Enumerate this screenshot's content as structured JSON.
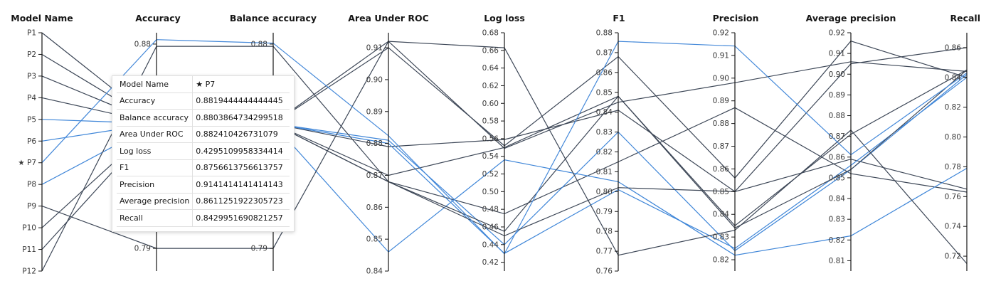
{
  "chart_data": {
    "type": "parallel-coordinates",
    "colors": {
      "highlight": "#4589d9",
      "dark": "#3d4757",
      "light": "#3f86d8"
    },
    "dimensions": [
      {
        "name": "Model Name",
        "categorical": true,
        "categories": [
          "P1",
          "P2",
          "P3",
          "P4",
          "P5",
          "P6",
          "P7",
          "P8",
          "P9",
          "P10",
          "P11",
          "P12"
        ],
        "tick_labels": [
          "P1",
          "P2",
          "P3",
          "P4",
          "P5",
          "P6",
          "★ P7",
          "P8",
          "P9",
          "P10",
          "P11",
          "P12"
        ]
      },
      {
        "name": "Accuracy",
        "range": [
          0.78,
          0.885
        ],
        "ticks": [
          0.79,
          0.8,
          0.88
        ],
        "tick_labels": [
          "0.79",
          "0.80",
          "0.88"
        ]
      },
      {
        "name": "Balance accuracy",
        "range": [
          0.78,
          0.885
        ],
        "ticks": [
          0.79,
          0.88
        ],
        "tick_labels": [
          "0.79",
          "0.88"
        ]
      },
      {
        "name": "Area Under ROC",
        "range": [
          0.84,
          0.9147
        ],
        "ticks": [
          0.84,
          0.85,
          0.86,
          0.87,
          0.88,
          0.89,
          0.9,
          0.91
        ],
        "tick_labels": [
          "0.84",
          "0.85",
          "0.86",
          "0.87",
          "0.88",
          "0.89",
          "0.90",
          "0.91"
        ]
      },
      {
        "name": "Log loss",
        "range": [
          0.41,
          0.68
        ],
        "ticks": [
          0.42,
          0.44,
          0.46,
          0.48,
          0.5,
          0.52,
          0.54,
          0.56,
          0.58,
          0.6,
          0.62,
          0.64,
          0.66,
          0.68
        ],
        "tick_labels": [
          "0.42",
          "0.44",
          "0.46",
          "0.48",
          "0.50",
          "0.52",
          "0.54",
          "0.56",
          "0.58",
          "0.60",
          "0.62",
          "0.64",
          "0.66",
          "0.68"
        ]
      },
      {
        "name": "F1",
        "range": [
          0.76,
          0.88
        ],
        "ticks": [
          0.76,
          0.77,
          0.78,
          0.79,
          0.8,
          0.81,
          0.82,
          0.83,
          0.84,
          0.85,
          0.86,
          0.87,
          0.88
        ],
        "tick_labels": [
          "0.76",
          "0.77",
          "0.78",
          "0.79",
          "0.80",
          "0.81",
          "0.82",
          "0.83",
          "0.84",
          "0.85",
          "0.86",
          "0.87",
          "0.88"
        ]
      },
      {
        "name": "Precision",
        "range": [
          0.815,
          0.92
        ],
        "ticks": [
          0.82,
          0.83,
          0.84,
          0.85,
          0.86,
          0.87,
          0.88,
          0.89,
          0.9,
          0.91,
          0.92
        ],
        "tick_labels": [
          "0.82",
          "0.83",
          "0.84",
          "0.85",
          "0.86",
          "0.87",
          "0.88",
          "0.89",
          "0.90",
          "0.91",
          "0.92"
        ]
      },
      {
        "name": "Average precision",
        "range": [
          0.805,
          0.92
        ],
        "ticks": [
          0.81,
          0.82,
          0.83,
          0.84,
          0.85,
          0.86,
          0.87,
          0.88,
          0.89,
          0.9,
          0.91,
          0.92
        ],
        "tick_labels": [
          "0.81",
          "0.82",
          "0.83",
          "0.84",
          "0.85",
          "0.86",
          "0.87",
          "0.88",
          "0.89",
          "0.90",
          "0.91",
          "0.92"
        ]
      },
      {
        "name": "Recall",
        "range": [
          0.71,
          0.87
        ],
        "ticks": [
          0.72,
          0.74,
          0.76,
          0.78,
          0.8,
          0.82,
          0.84,
          0.86
        ],
        "tick_labels": [
          "0.72",
          "0.74",
          "0.76",
          "0.78",
          "0.80",
          "0.82",
          "0.84",
          "0.86"
        ]
      }
    ],
    "series": [
      {
        "name": "P1",
        "color": "dark",
        "values": [
          "P1",
          0.845,
          0.845,
          0.912,
          0.549,
          0.845,
          0.898,
          0.906,
          0.844
        ]
      },
      {
        "name": "P2",
        "color": "dark",
        "values": [
          "P2",
          0.845,
          0.845,
          0.91,
          0.552,
          0.868,
          0.856,
          0.916,
          0.84
        ]
      },
      {
        "name": "P3",
        "color": "dark",
        "values": [
          "P3",
          0.845,
          0.845,
          0.879,
          0.559,
          0.841,
          0.85,
          0.859,
          0.765
        ]
      },
      {
        "name": "P4",
        "color": "dark",
        "values": [
          "P4",
          0.845,
          0.845,
          0.868,
          0.475,
          0.815,
          0.887,
          0.852,
          0.763
        ]
      },
      {
        "name": "P5",
        "color": "light",
        "values": [
          "P5",
          0.845,
          0.845,
          0.846,
          0.536,
          0.805,
          0.822,
          0.822,
          0.779
        ]
      },
      {
        "name": "P6",
        "color": "light",
        "values": [
          "P6",
          0.845,
          0.845,
          0.881,
          0.44,
          0.83,
          0.824,
          0.854,
          0.842
        ]
      },
      {
        "name": "P7",
        "color": "highlight",
        "selected": true,
        "values": [
          "P7",
          0.8819444444444445,
          0.8803864734299518,
          0.882410426731079,
          0.4295109958334414,
          0.8756613756613757,
          0.9141414141414143,
          0.8611251922305723,
          0.8429951690821257
        ]
      },
      {
        "name": "P8",
        "color": "light",
        "values": [
          "P8",
          0.845,
          0.845,
          0.88,
          0.43,
          0.801,
          0.825,
          0.856,
          0.84
        ]
      },
      {
        "name": "P9",
        "color": "dark",
        "values": [
          "P9",
          0.79,
          0.79,
          0.912,
          0.663,
          0.768,
          0.833,
          0.873,
          0.715
        ]
      },
      {
        "name": "P10",
        "color": "dark",
        "values": [
          "P10",
          0.845,
          0.845,
          0.87,
          0.55,
          0.848,
          0.834,
          0.854,
          0.845
        ]
      },
      {
        "name": "P11",
        "color": "dark",
        "values": [
          "P11",
          0.845,
          0.845,
          0.868,
          0.455,
          0.848,
          0.835,
          0.871,
          0.845
        ]
      },
      {
        "name": "P12",
        "color": "dark",
        "values": [
          "P12",
          0.879,
          0.879,
          0.868,
          0.45,
          0.802,
          0.85,
          0.905,
          0.86
        ]
      }
    ]
  },
  "tooltip": {
    "rows": [
      {
        "key": "Model Name",
        "value": "★ P7"
      },
      {
        "key": "Accuracy",
        "value": "0.8819444444444445"
      },
      {
        "key": "Balance accuracy",
        "value": "0.8803864734299518"
      },
      {
        "key": "Area Under ROC",
        "value": "0.882410426731079"
      },
      {
        "key": "Log loss",
        "value": "0.4295109958334414"
      },
      {
        "key": "F1",
        "value": "0.8756613756613757"
      },
      {
        "key": "Precision",
        "value": "0.9141414141414143"
      },
      {
        "key": "Average precision",
        "value": "0.8611251922305723"
      },
      {
        "key": "Recall",
        "value": "0.8429951690821257"
      }
    ]
  }
}
